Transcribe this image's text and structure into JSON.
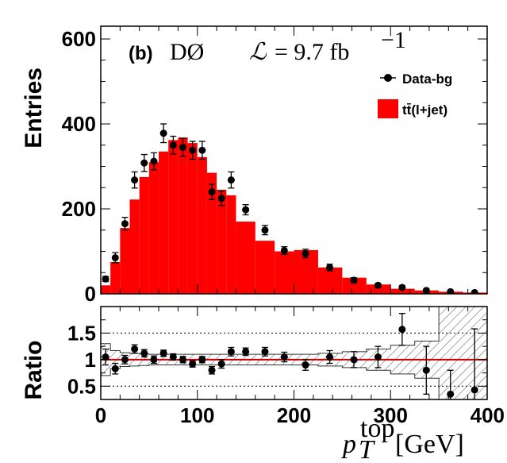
{
  "chart_data": [
    {
      "type": "bar",
      "panel": "top",
      "panel_label": "(b)",
      "experiment": "DØ",
      "luminosity_symbol": "ℒ",
      "luminosity_value": "= 9.7 fb",
      "luminosity_exp": "−1",
      "ylabel": "Entries",
      "ylim": [
        0,
        630
      ],
      "xlim": [
        0,
        400
      ],
      "yticks": [
        0,
        200,
        400,
        600
      ],
      "ytick_labels": [
        "0",
        "200",
        "400",
        "600"
      ],
      "bin_edges": [
        0,
        10,
        20,
        30,
        40,
        50,
        60,
        70,
        80,
        90,
        100,
        110,
        120,
        130,
        140,
        160,
        180,
        200,
        225,
        250,
        275,
        300,
        325,
        350,
        375,
        400
      ],
      "series": [
        {
          "name": "tt̄(l+jet)",
          "kind": "histogram",
          "color": "#ff0000",
          "values": [
            20,
            75,
            155,
            222,
            275,
            310,
            335,
            362,
            368,
            355,
            322,
            285,
            245,
            232,
            170,
            125,
            100,
            103,
            62,
            38,
            22,
            12,
            8,
            5,
            3
          ]
        },
        {
          "name": "Data-bg",
          "kind": "points",
          "color": "#000000",
          "x": [
            5,
            15,
            25,
            35,
            45,
            55,
            65,
            75,
            85,
            95,
            105,
            115,
            125,
            135,
            150,
            170,
            190,
            212,
            237,
            262,
            287,
            312,
            337,
            362,
            387
          ],
          "y": [
            35,
            85,
            165,
            268,
            308,
            312,
            378,
            350,
            345,
            338,
            338,
            240,
            225,
            268,
            198,
            150,
            102,
            95,
            62,
            32,
            20,
            15,
            8,
            5,
            3
          ],
          "err": [
            6,
            12,
            15,
            19,
            20,
            20,
            22,
            21,
            21,
            21,
            21,
            18,
            17,
            19,
            12,
            11,
            9,
            10,
            8,
            6,
            5,
            4,
            3,
            2,
            2
          ]
        }
      ],
      "legend_placement": "top-right"
    },
    {
      "type": "scatter",
      "panel": "bottom",
      "ylabel": "Ratio",
      "xlabel_main": "p",
      "xlabel_sub": "T",
      "xlabel_sup": "top",
      "xlabel_unit": "[GeV]",
      "ylim": [
        0.25,
        2.0
      ],
      "xlim": [
        0,
        400
      ],
      "yticks": [
        0.5,
        1,
        1.5
      ],
      "ytick_labels": [
        "0.5",
        "1",
        "1.5"
      ],
      "xticks": [
        0,
        100,
        200,
        300,
        400
      ],
      "xtick_labels": [
        "0",
        "100",
        "200",
        "300",
        "400"
      ],
      "reference_lines": [
        0.5,
        1,
        1.5
      ],
      "points": {
        "x": [
          5,
          15,
          25,
          35,
          45,
          55,
          65,
          75,
          85,
          95,
          105,
          115,
          125,
          135,
          150,
          170,
          190,
          212,
          237,
          262,
          287,
          312,
          337,
          362,
          387
        ],
        "y": [
          1.05,
          0.83,
          1.0,
          1.2,
          1.12,
          1.0,
          1.12,
          1.05,
          1.0,
          0.92,
          1.0,
          0.8,
          0.92,
          1.15,
          1.15,
          1.15,
          1.05,
          0.9,
          1.05,
          1.0,
          1.05,
          1.57,
          0.8,
          0.35,
          0.43
        ],
        "err": [
          0.15,
          0.1,
          0.08,
          0.08,
          0.07,
          0.07,
          0.06,
          0.06,
          0.06,
          0.06,
          0.06,
          0.07,
          0.08,
          0.08,
          0.07,
          0.08,
          0.09,
          0.1,
          0.12,
          0.15,
          0.2,
          0.3,
          0.45,
          0.45,
          1.15
        ]
      },
      "uncertainty_band": {
        "x_edges": [
          0,
          10,
          20,
          30,
          40,
          50,
          60,
          70,
          80,
          90,
          100,
          110,
          120,
          130,
          140,
          160,
          180,
          200,
          225,
          250,
          275,
          300,
          325,
          350,
          375,
          400
        ],
        "half_width": [
          0.3,
          0.17,
          0.13,
          0.12,
          0.11,
          0.1,
          0.1,
          0.1,
          0.1,
          0.1,
          0.1,
          0.1,
          0.1,
          0.1,
          0.1,
          0.1,
          0.1,
          0.1,
          0.12,
          0.15,
          0.2,
          0.27,
          0.35,
          1.2,
          1.2
        ]
      }
    }
  ]
}
